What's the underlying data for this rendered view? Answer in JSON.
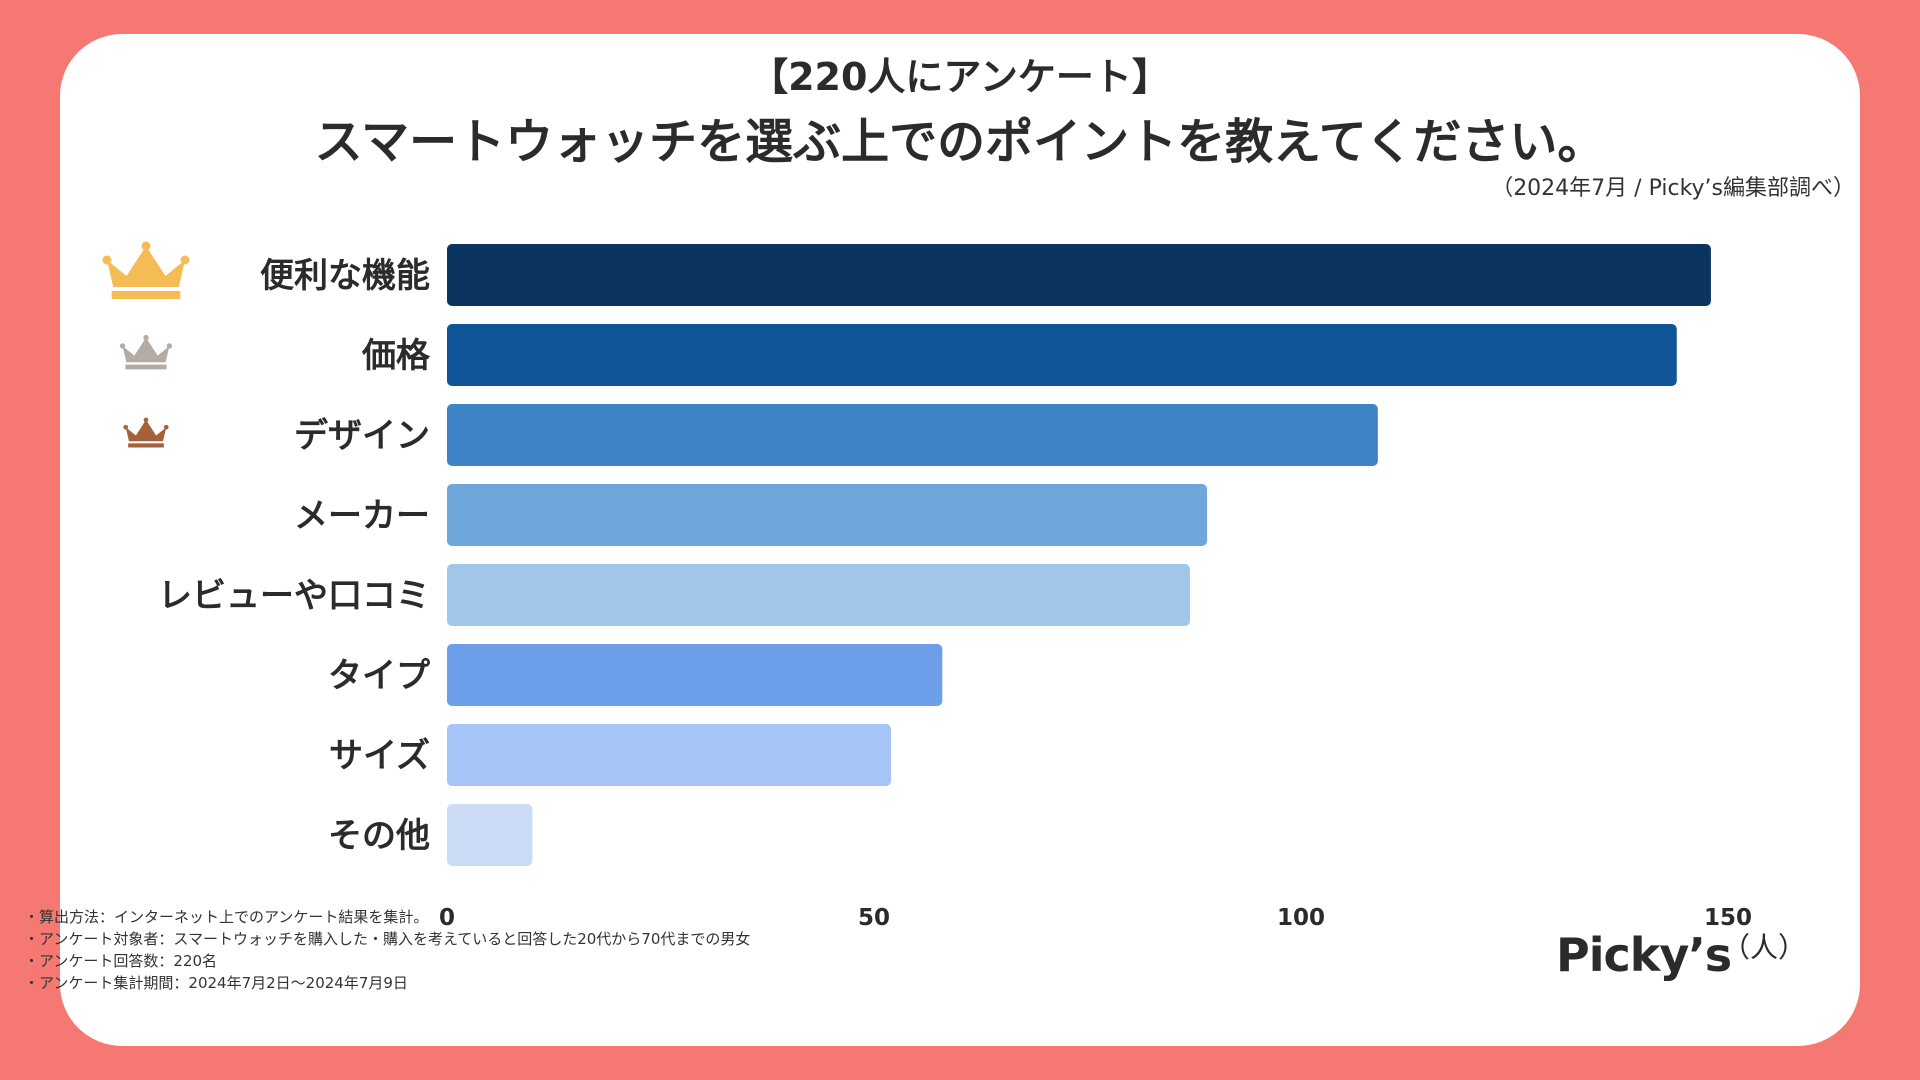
{
  "header": {
    "subtitle": "【220人にアンケート】",
    "title": "スマートウォッチを選ぶ上でのポイントを教えてください。",
    "source": "（2024年7月 / Picky’s編集部調べ）"
  },
  "chart_data": {
    "type": "bar",
    "orientation": "horizontal",
    "categories": [
      "便利な機能",
      "価格",
      "デザイン",
      "メーカー",
      "レビューや口コミ",
      "タイプ",
      "サイズ",
      "その他"
    ],
    "values": [
      148,
      144,
      109,
      89,
      87,
      58,
      52,
      10
    ],
    "colors": [
      "#0b355f",
      "#0f5597",
      "#4084c8",
      "#6fa7dc",
      "#a2c6ea",
      "#6d9ee9",
      "#a6c4f5",
      "#ccdbf6"
    ],
    "ranks": [
      "gold",
      "silver",
      "bronze"
    ],
    "rank_colors": {
      "gold": "#f5bb55",
      "silver": "#b4aca3",
      "bronze": "#a5623a"
    },
    "xticks": [
      0,
      50,
      100,
      150
    ],
    "xlim": [
      0,
      150
    ],
    "unit_label": "（人）",
    "title": "スマートウォッチを選ぶ上でのポイントを教えてください。"
  },
  "notes": [
    "・算出方法：インターネット上でのアンケート結果を集計。",
    "・アンケート対象者：スマートウォッチを購入した・購入を考えていると回答した20代から70代までの男女",
    "・アンケート回答数：220名",
    "・アンケート集計期間：2024年7月2日〜2024年7月9日"
  ],
  "logo": {
    "text": "Picky’s"
  },
  "colors": {
    "background": "#f57873",
    "card": "#ffffff",
    "text": "#2b2b2b"
  }
}
